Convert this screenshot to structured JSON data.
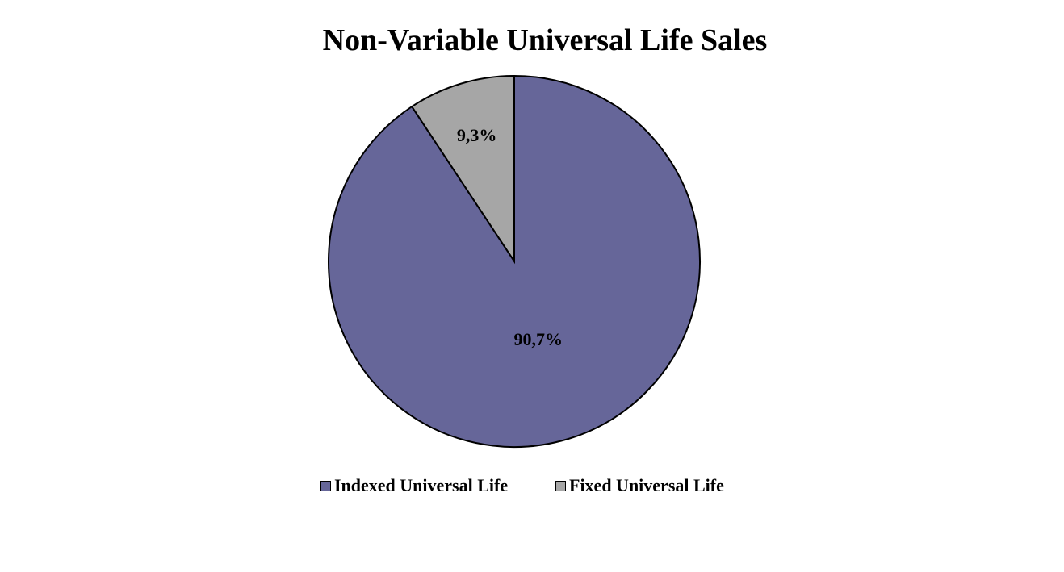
{
  "chart_data": {
    "type": "pie",
    "title": "Non-Variable Universal Life Sales",
    "legend_position": "bottom",
    "series": [
      {
        "slices": [
          {
            "label": "Fixed Universal Life",
            "value": 9.3,
            "display": "9,3%",
            "color": "#a6a6a6"
          },
          {
            "label": "Indexed Universal Life",
            "value": 90.7,
            "display": "90,7%",
            "color": "#666699"
          }
        ]
      }
    ],
    "legend": [
      {
        "label": "Indexed Universal Life",
        "color": "#666699"
      },
      {
        "label": "Fixed Universal Life",
        "color": "#a6a6a6"
      }
    ]
  }
}
